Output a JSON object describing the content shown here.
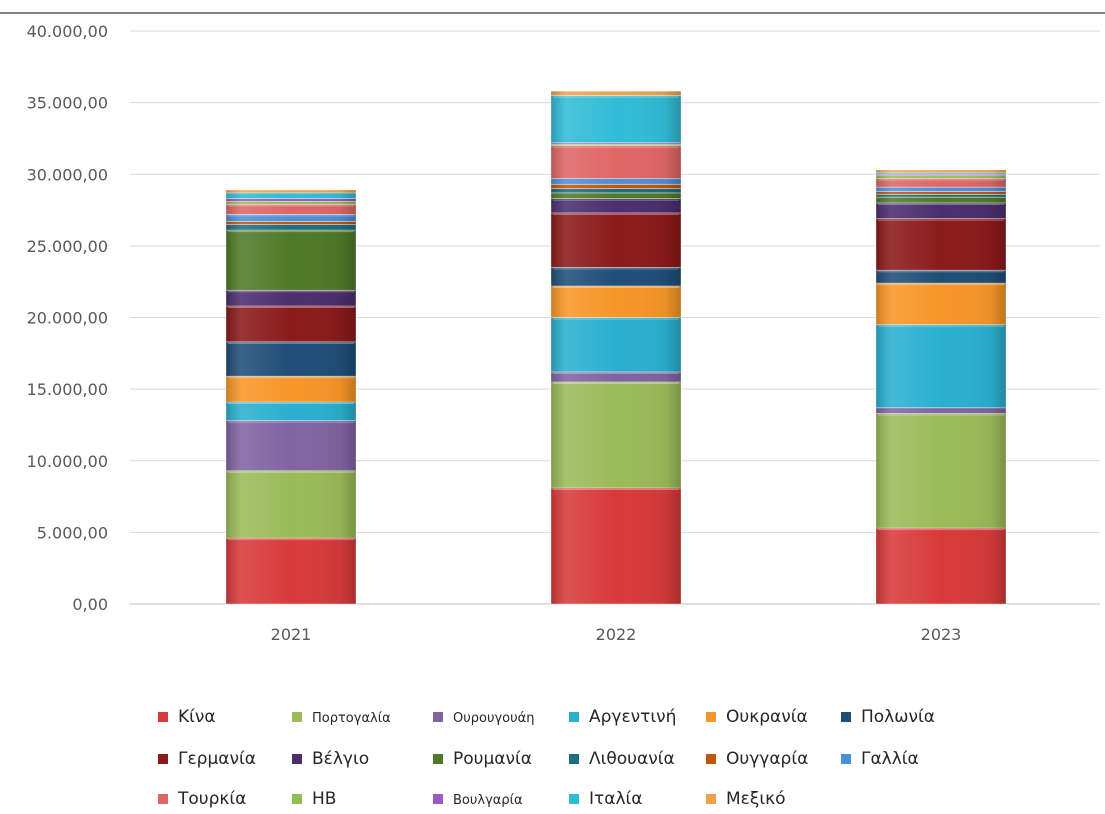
{
  "chart_data": {
    "type": "bar",
    "stacked": true,
    "categories": [
      "2021",
      "2022",
      "2023"
    ],
    "ylim": [
      0,
      40000
    ],
    "yticks": [
      "0,00",
      "5.000,00",
      "10.000,00",
      "15.000,00",
      "20.000,00",
      "25.000,00",
      "30.000,00",
      "35.000,00",
      "40.000,00"
    ],
    "grid": true,
    "legend_position": "bottom",
    "series": [
      {
        "name": "Κίνα",
        "color": "#d83a3a",
        "values": [
          4600,
          8100,
          5300
        ]
      },
      {
        "name": "Πορτογαλία",
        "color": "#9bbb59",
        "values": [
          4700,
          7400,
          8000
        ]
      },
      {
        "name": "Ουρουγουάη",
        "color": "#8064a2",
        "values": [
          3500,
          700,
          400
        ]
      },
      {
        "name": "Αργεντινή",
        "color": "#2ab0cf",
        "values": [
          1300,
          3800,
          5800
        ]
      },
      {
        "name": "Ουκρανία",
        "color": "#f79628",
        "values": [
          1800,
          2200,
          2900
        ]
      },
      {
        "name": "Πολωνία",
        "color": "#1f4e79",
        "values": [
          2400,
          1300,
          900
        ]
      },
      {
        "name": "Γερμανία",
        "color": "#8b1a1a",
        "values": [
          2500,
          3800,
          3600
        ]
      },
      {
        "name": "Βέλγιο",
        "color": "#4b2e6e",
        "values": [
          1100,
          1000,
          1100
        ]
      },
      {
        "name": "Ρουμανία",
        "color": "#4f7a28",
        "values": [
          4200,
          400,
          400
        ]
      },
      {
        "name": "Λιθουανία",
        "color": "#1f6e80",
        "values": [
          400,
          300,
          200
        ]
      },
      {
        "name": "Ουγγαρία",
        "color": "#c0560e",
        "values": [
          200,
          300,
          200
        ]
      },
      {
        "name": "Γαλλία",
        "color": "#4a90d9",
        "values": [
          500,
          400,
          300
        ]
      },
      {
        "name": "Τουρκία",
        "color": "#e06666",
        "values": [
          700,
          2300,
          600
        ]
      },
      {
        "name": "ΗΒ",
        "color": "#8fbf4f",
        "values": [
          200,
          100,
          200
        ]
      },
      {
        "name": "Βουλγαρία",
        "color": "#9b59c6",
        "values": [
          200,
          100,
          100
        ]
      },
      {
        "name": "Ιταλία",
        "color": "#31bcd6",
        "values": [
          400,
          3300,
          100
        ]
      },
      {
        "name": "Μεξικό",
        "color": "#f0a04b",
        "values": [
          200,
          300,
          200
        ]
      }
    ]
  }
}
